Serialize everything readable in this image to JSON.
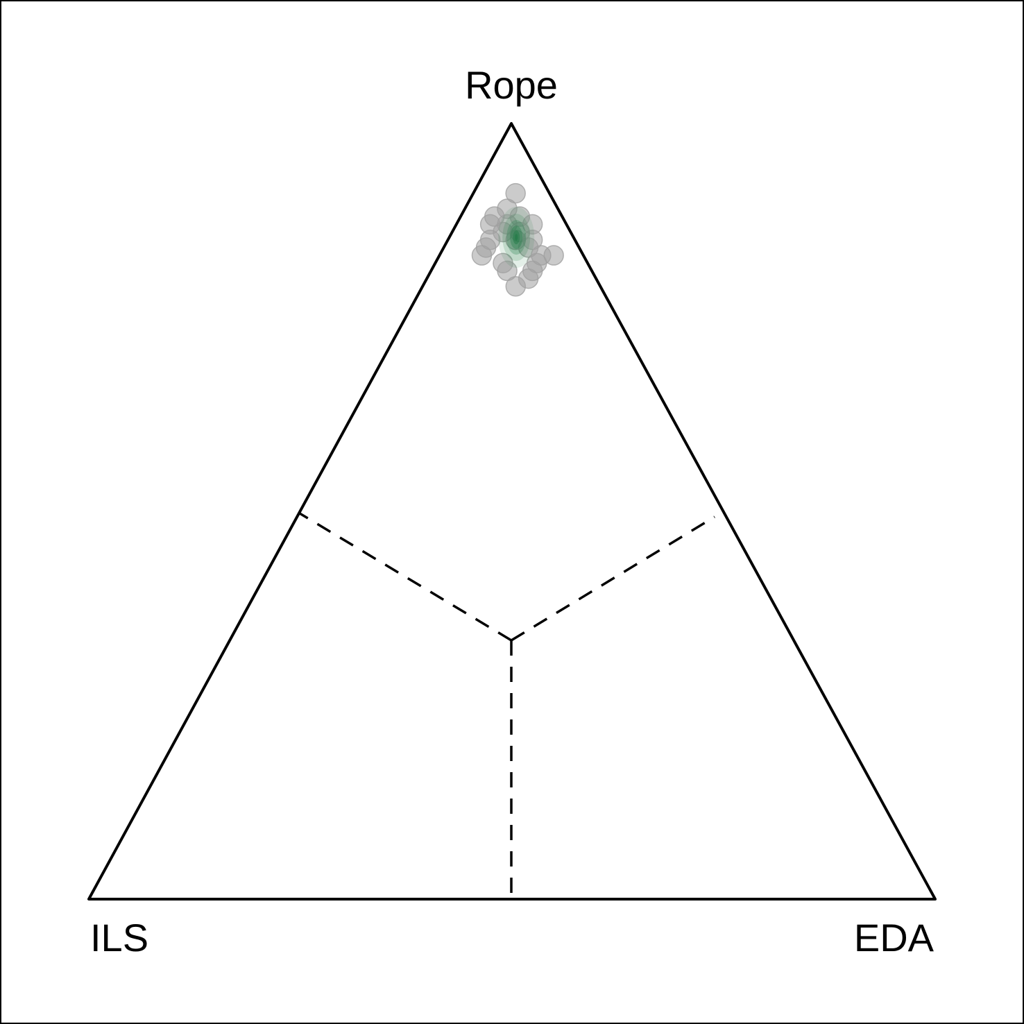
{
  "chart_data": {
    "type": "ternary",
    "vertices": {
      "top": "Rope",
      "left": "ILS",
      "right": "EDA"
    },
    "point_color": "#a0a0a0",
    "density_color": "#1f7a45",
    "points": [
      [
        0.91,
        0.04,
        0.05
      ],
      [
        0.89,
        0.06,
        0.05
      ],
      [
        0.88,
        0.08,
        0.04
      ],
      [
        0.88,
        0.05,
        0.07
      ],
      [
        0.87,
        0.09,
        0.04
      ],
      [
        0.87,
        0.07,
        0.06
      ],
      [
        0.87,
        0.04,
        0.09
      ],
      [
        0.86,
        0.08,
        0.06
      ],
      [
        0.86,
        0.06,
        0.08
      ],
      [
        0.85,
        0.1,
        0.05
      ],
      [
        0.85,
        0.07,
        0.08
      ],
      [
        0.85,
        0.05,
        0.1
      ],
      [
        0.84,
        0.11,
        0.05
      ],
      [
        0.84,
        0.06,
        0.1
      ],
      [
        0.83,
        0.12,
        0.05
      ],
      [
        0.83,
        0.05,
        0.12
      ],
      [
        0.83,
        0.035,
        0.135
      ],
      [
        0.82,
        0.1,
        0.08
      ],
      [
        0.82,
        0.06,
        0.12
      ],
      [
        0.81,
        0.1,
        0.09
      ],
      [
        0.81,
        0.07,
        0.12
      ],
      [
        0.8,
        0.08,
        0.12
      ],
      [
        0.79,
        0.1,
        0.11
      ]
    ]
  }
}
